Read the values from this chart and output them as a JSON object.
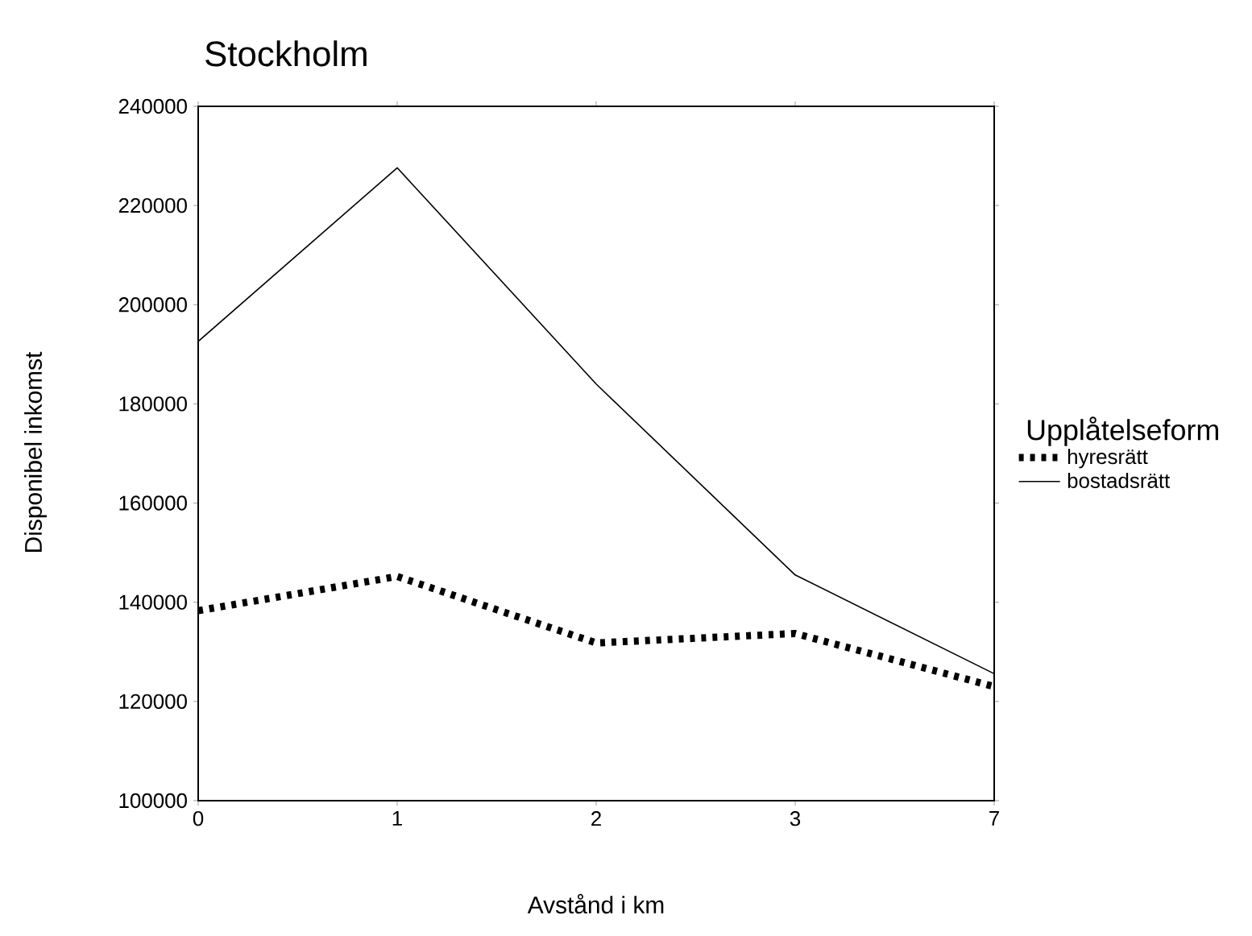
{
  "chart_data": {
    "type": "line",
    "title": "Stockholm",
    "xlabel": "Avstånd i km",
    "ylabel": "Disponibel inkomst",
    "legend_title": "Upplåtelseform",
    "legend": "right",
    "categories": [
      "0",
      "1",
      "2",
      "3",
      "7"
    ],
    "ylim": [
      100000,
      240000
    ],
    "yticks": [
      100000,
      120000,
      140000,
      160000,
      180000,
      200000,
      220000,
      240000
    ],
    "series": [
      {
        "name": "hyresrätt",
        "color": "#000000",
        "line_style": "dashed",
        "values": [
          138300,
          145200,
          131800,
          133700,
          123000
        ]
      },
      {
        "name": "bostadsrätt",
        "color": "#000000",
        "line_style": "solid",
        "values": [
          192600,
          227600,
          184000,
          145500,
          125600
        ]
      }
    ]
  }
}
